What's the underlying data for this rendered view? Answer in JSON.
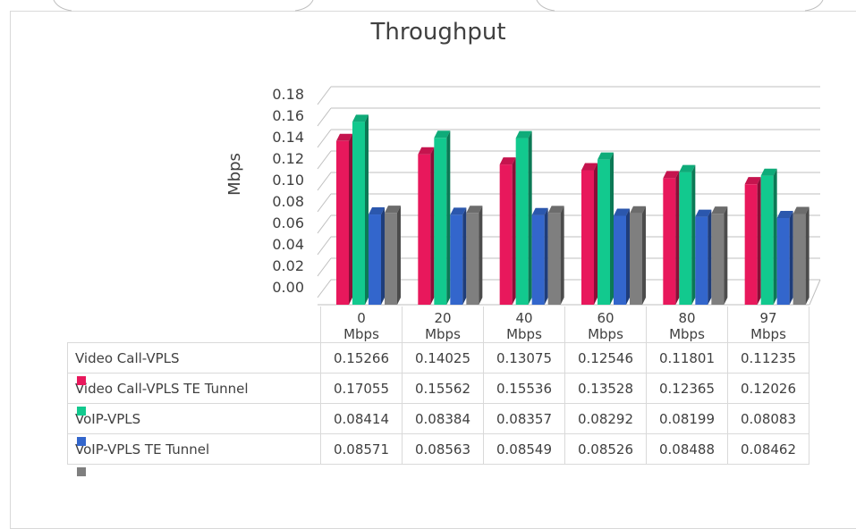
{
  "chart_data": {
    "type": "bar3d",
    "title": "Throughput",
    "y_label": "Mbps",
    "categories": [
      "0 Mbps",
      "20 Mbps",
      "40 Mbps",
      "60 Mbps",
      "80 Mbps",
      "97 Mbps"
    ],
    "series": [
      {
        "name": "Video Call-VPLS",
        "color": "#e8185c",
        "values": [
          0.15266,
          0.14025,
          0.13075,
          0.12546,
          0.11801,
          0.11235
        ]
      },
      {
        "name": "Video Call-VPLS TE Tunnel",
        "color": "#12c98e",
        "values": [
          0.17055,
          0.15562,
          0.15536,
          0.13528,
          0.12365,
          0.12026
        ]
      },
      {
        "name": "VoIP-VPLS",
        "color": "#3366cc",
        "values": [
          0.08414,
          0.08384,
          0.08357,
          0.08292,
          0.08199,
          0.08083
        ]
      },
      {
        "name": "VoIP-VPLS TE Tunnel",
        "color": "#7f7f7f",
        "values": [
          0.08571,
          0.08563,
          0.08549,
          0.08526,
          0.08488,
          0.08462
        ]
      }
    ],
    "ylim": [
      0,
      0.18
    ],
    "yticks": [
      {
        "value": 0,
        "label": "0.00"
      },
      {
        "value": 0.02,
        "label": "0.02"
      },
      {
        "value": 0.04,
        "label": "0.04"
      },
      {
        "value": 0.06,
        "label": "0.06"
      },
      {
        "value": 0.08,
        "label": "0.08"
      },
      {
        "value": 0.1,
        "label": "0.10"
      },
      {
        "value": 0.12,
        "label": "0.12"
      },
      {
        "value": 0.14,
        "label": "0.14"
      },
      {
        "value": 0.16,
        "label": "0.16"
      },
      {
        "value": 0.18,
        "label": "0.18"
      }
    ],
    "grid": true
  }
}
